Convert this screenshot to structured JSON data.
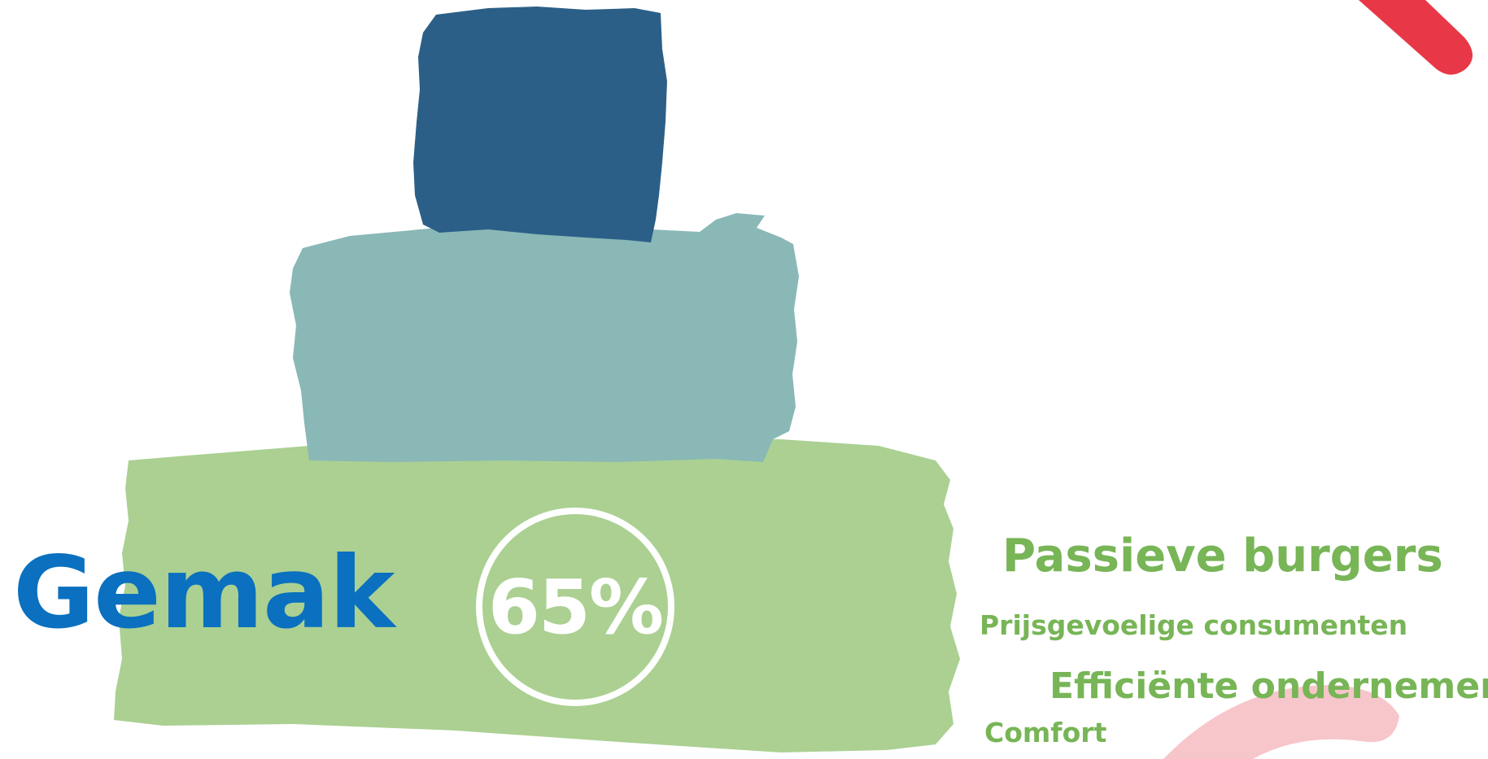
{
  "colors": {
    "title": "#0a70bf",
    "dark_block": "#2b5f87",
    "mid_block": "#89b8b7",
    "light_block": "#abd092",
    "label": "#77b556",
    "accent_red": "#e83847",
    "accent_pink": "#f7c6cb"
  },
  "title": "Gemak",
  "percent": "65%",
  "labels": {
    "passive_citizens": "Passieve burgers",
    "price_sensitive": "Prijsgevoelige consumenten",
    "efficient_entrepreneurs": "Efficiënte ondernemers",
    "comfort": "Comfort"
  },
  "shapes": {
    "dark": "dark-brush-block",
    "mid": "teal-brush-block",
    "light": "green-brush-block",
    "red": "red-stroke",
    "pink": "pink-arc"
  }
}
